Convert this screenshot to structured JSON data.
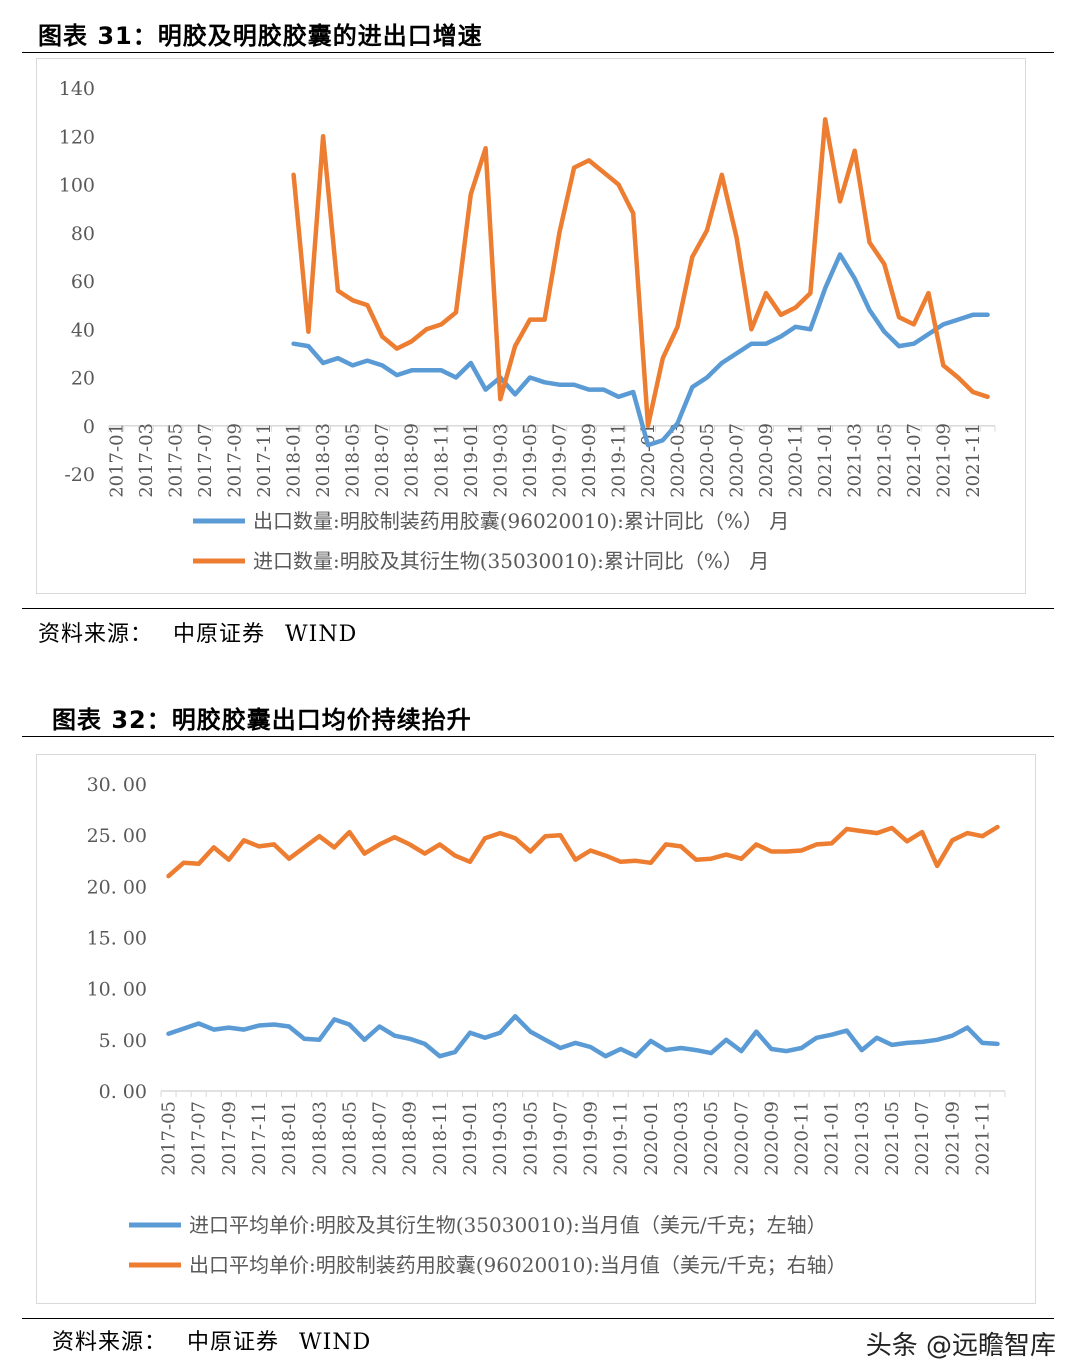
{
  "figure31": {
    "title": "图表 31：明胶及明胶胶囊的进出口增速",
    "source_label": "资料来源：",
    "source_org": "中原证券",
    "source_db": "WIND"
  },
  "figure32": {
    "title": "图表 32：明胶胶囊出口均价持续抬升",
    "source_label": "资料来源：",
    "source_org": "中原证券",
    "source_db": "WIND"
  },
  "watermark": "头条 @远瞻智库",
  "colors": {
    "blue": "#5b9bd5",
    "orange": "#ed7d31",
    "axis": "#d9d9d9",
    "text": "#595959"
  },
  "chart_data": [
    {
      "type": "line",
      "ylim": [
        -20,
        140
      ],
      "yticks": [
        "140",
        "120",
        "100",
        "80",
        "60",
        "40",
        "20",
        "0",
        "-20"
      ],
      "ytick_values": [
        140,
        120,
        100,
        80,
        60,
        40,
        20,
        0,
        -20
      ],
      "x": [
        "2017-01",
        "2017-02",
        "2017-03",
        "2017-04",
        "2017-05",
        "2017-06",
        "2017-07",
        "2017-08",
        "2017-09",
        "2017-10",
        "2017-11",
        "2017-12",
        "2018-01",
        "2018-02",
        "2018-03",
        "2018-04",
        "2018-05",
        "2018-06",
        "2018-07",
        "2018-08",
        "2018-09",
        "2018-10",
        "2018-11",
        "2018-12",
        "2019-01",
        "2019-02",
        "2019-03",
        "2019-04",
        "2019-05",
        "2019-06",
        "2019-07",
        "2019-08",
        "2019-09",
        "2019-10",
        "2019-11",
        "2019-12",
        "2020-01",
        "2020-02",
        "2020-03",
        "2020-04",
        "2020-05",
        "2020-06",
        "2020-07",
        "2020-08",
        "2020-09",
        "2020-10",
        "2020-11",
        "2020-12",
        "2021-01",
        "2021-02",
        "2021-03",
        "2021-04",
        "2021-05",
        "2021-06",
        "2021-07",
        "2021-08",
        "2021-09",
        "2021-10",
        "2021-11",
        "2021-12"
      ],
      "xtick_labels": [
        "2017-01",
        "2017-03",
        "2017-05",
        "2017-07",
        "2017-09",
        "2017-11",
        "2018-01",
        "2018-03",
        "2018-05",
        "2018-07",
        "2018-09",
        "2018-11",
        "2019-01",
        "2019-03",
        "2019-05",
        "2019-07",
        "2019-09",
        "2019-11",
        "2020-01",
        "2020-03",
        "2020-05",
        "2020-07",
        "2020-09",
        "2020-11",
        "2021-01",
        "2021-03",
        "2021-05",
        "2021-07",
        "2021-09",
        "2021-11"
      ],
      "series": [
        {
          "name": "出口数量:明胶制装药用胶囊(96020010):累计同比（%） 月",
          "color": "#5b9bd5",
          "values": [
            null,
            null,
            null,
            null,
            null,
            null,
            null,
            null,
            null,
            null,
            null,
            null,
            34,
            33,
            26,
            28,
            25,
            27,
            25,
            21,
            23,
            23,
            23,
            20,
            26,
            15,
            20,
            13,
            20,
            18,
            17,
            17,
            15,
            15,
            12,
            14,
            -8,
            -6,
            1,
            16,
            20,
            26,
            30,
            34,
            34,
            37,
            41,
            40,
            57,
            71,
            61,
            48,
            39,
            33,
            34,
            38,
            42,
            44,
            46,
            46
          ]
        },
        {
          "name": "进口数量:明胶及其衍生物(35030010):累计同比（%） 月",
          "color": "#ed7d31",
          "values": [
            null,
            null,
            null,
            null,
            null,
            null,
            null,
            null,
            null,
            null,
            null,
            null,
            104,
            39,
            120,
            56,
            52,
            50,
            37,
            32,
            35,
            40,
            42,
            47,
            96,
            115,
            11,
            33,
            44,
            44,
            80,
            107,
            110,
            105,
            100,
            88,
            0,
            28,
            41,
            70,
            81,
            104,
            78,
            40,
            55,
            46,
            49,
            55,
            127,
            93,
            114,
            76,
            67,
            45,
            42,
            55,
            25,
            20,
            14,
            12
          ]
        }
      ]
    },
    {
      "type": "line",
      "ylim": [
        0,
        30
      ],
      "yticks": [
        "30. 00",
        "25. 00",
        "20. 00",
        "15. 00",
        "10. 00",
        "5. 00",
        "0. 00"
      ],
      "ytick_values": [
        30,
        25,
        20,
        15,
        10,
        5,
        0
      ],
      "x": [
        "2017-05",
        "2017-06",
        "2017-07",
        "2017-08",
        "2017-09",
        "2017-10",
        "2017-11",
        "2017-12",
        "2018-01",
        "2018-02",
        "2018-03",
        "2018-04",
        "2018-05",
        "2018-06",
        "2018-07",
        "2018-08",
        "2018-09",
        "2018-10",
        "2018-11",
        "2018-12",
        "2019-01",
        "2019-02",
        "2019-03",
        "2019-04",
        "2019-05",
        "2019-06",
        "2019-07",
        "2019-08",
        "2019-09",
        "2019-10",
        "2019-11",
        "2019-12",
        "2020-01",
        "2020-02",
        "2020-03",
        "2020-04",
        "2020-05",
        "2020-06",
        "2020-07",
        "2020-08",
        "2020-09",
        "2020-10",
        "2020-11",
        "2020-12",
        "2021-01",
        "2021-02",
        "2021-03",
        "2021-04",
        "2021-05",
        "2021-06",
        "2021-07",
        "2021-08",
        "2021-09",
        "2021-10",
        "2021-11",
        "2021-12"
      ],
      "xtick_labels": [
        "2017-05",
        "2017-07",
        "2017-09",
        "2017-11",
        "2018-01",
        "2018-03",
        "2018-05",
        "2018-07",
        "2018-09",
        "2018-11",
        "2019-01",
        "2019-03",
        "2019-05",
        "2019-07",
        "2019-09",
        "2019-11",
        "2020-01",
        "2020-03",
        "2020-05",
        "2020-07",
        "2020-09",
        "2020-11",
        "2021-01",
        "2021-03",
        "2021-05",
        "2021-07",
        "2021-09",
        "2021-11"
      ],
      "series": [
        {
          "name": "进口平均单价:明胶及其衍生物(35030010):当月值（美元/千克；左轴）",
          "color": "#5b9bd5",
          "values": [
            5.6,
            6.1,
            6.6,
            6.0,
            6.2,
            6.0,
            6.4,
            6.5,
            6.3,
            5.1,
            5.0,
            7.0,
            6.5,
            5.0,
            6.3,
            5.4,
            5.1,
            4.6,
            3.4,
            3.8,
            5.7,
            5.2,
            5.7,
            7.3,
            5.8,
            5.0,
            4.2,
            4.7,
            4.3,
            3.4,
            4.1,
            3.4,
            4.9,
            4.0,
            4.2,
            4.0,
            3.7,
            5.0,
            3.9,
            5.8,
            4.1,
            3.9,
            4.2,
            5.2,
            5.5,
            5.9,
            4.0,
            5.2,
            4.5,
            4.7,
            4.8,
            5.0,
            5.4,
            6.2,
            4.7,
            4.6
          ]
        },
        {
          "name": "出口平均单价:明胶制装药用胶囊(96020010):当月值（美元/千克；右轴）",
          "color": "#ed7d31",
          "values": [
            21.0,
            22.3,
            22.2,
            23.8,
            22.6,
            24.5,
            23.9,
            24.1,
            22.7,
            23.8,
            24.9,
            23.8,
            25.3,
            23.2,
            24.1,
            24.8,
            24.1,
            23.2,
            24.1,
            23.0,
            22.4,
            24.7,
            25.2,
            24.7,
            23.4,
            24.9,
            25.0,
            22.6,
            23.5,
            23.0,
            22.4,
            22.5,
            22.3,
            24.1,
            23.9,
            22.6,
            22.7,
            23.1,
            22.7,
            24.1,
            23.4,
            23.4,
            23.5,
            24.1,
            24.2,
            25.6,
            25.4,
            25.2,
            25.7,
            24.4,
            25.3,
            22.0,
            24.5,
            25.2,
            24.9,
            25.8
          ]
        }
      ]
    }
  ]
}
